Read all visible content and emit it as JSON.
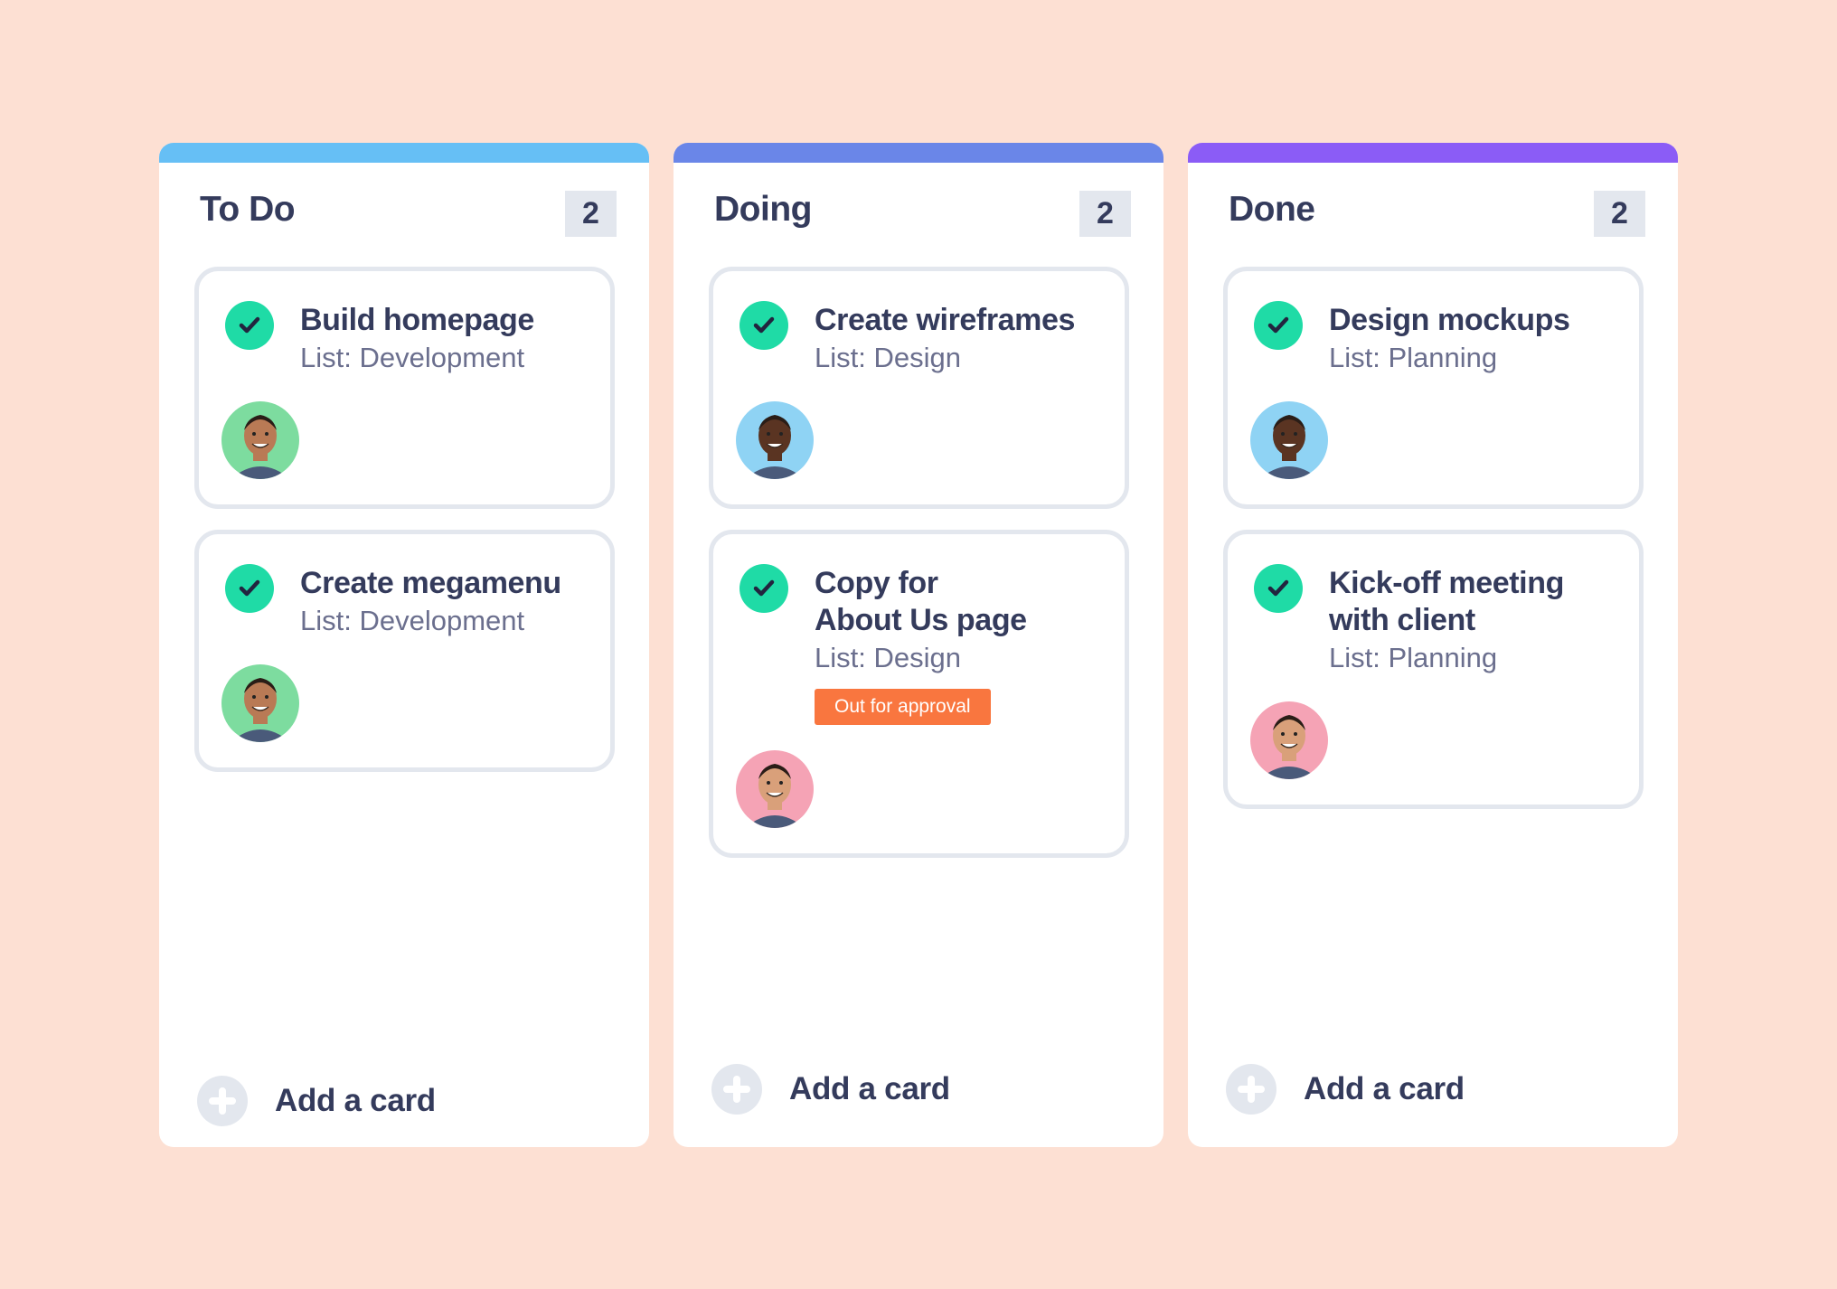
{
  "colors": {
    "background": "#fde0d3",
    "check": "#1fdba6",
    "tag": "#f9763f"
  },
  "columns": [
    {
      "title": "To Do",
      "count": "2",
      "bar_color": "#66bff5",
      "add_label": "Add a card",
      "cards": [
        {
          "title": "Build homepage",
          "list": "List: Development",
          "avatar_bg": "#7ddc9f",
          "avatar_skin": "#b97a55"
        },
        {
          "title": "Create megamenu",
          "list": "List: Development",
          "avatar_bg": "#7ddc9f",
          "avatar_skin": "#b97a55"
        }
      ]
    },
    {
      "title": "Doing",
      "count": "2",
      "bar_color": "#6a86e8",
      "add_label": "Add a card",
      "cards": [
        {
          "title": "Create wireframes",
          "list": "List: Design",
          "avatar_bg": "#8fd3f4",
          "avatar_skin": "#5a3422"
        },
        {
          "title": "Copy for\nAbout Us page",
          "list": "List: Design",
          "tag": "Out for approval",
          "avatar_bg": "#f5a3b5",
          "avatar_skin": "#d9a07a"
        }
      ]
    },
    {
      "title": "Done",
      "count": "2",
      "bar_color": "#8b5cf6",
      "add_label": "Add a card",
      "cards": [
        {
          "title": "Design mockups",
          "list": "List: Planning",
          "avatar_bg": "#8fd3f4",
          "avatar_skin": "#5a3422"
        },
        {
          "title": "Kick-off meeting with client",
          "list": "List: Planning",
          "avatar_bg": "#f5a3b5",
          "avatar_skin": "#d9a07a"
        }
      ]
    }
  ]
}
